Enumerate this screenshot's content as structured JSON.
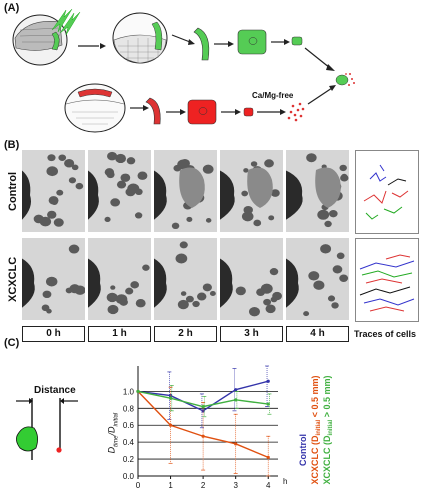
{
  "panels": {
    "a_label": "(A)",
    "b_label": "(B)",
    "c_label": "(C)"
  },
  "panel_a": {
    "treatment_label": "Ca/Mg-free"
  },
  "panel_b": {
    "row_labels": [
      "Control",
      "XCXCLC"
    ],
    "time_labels": [
      "0 h",
      "1 h",
      "2 h",
      "3 h",
      "4 h"
    ],
    "traces_label": "Traces of cells",
    "trace_colors": [
      "#d33",
      "#2a2",
      "#33c",
      "#111"
    ]
  },
  "panel_c": {
    "distance_label": "Distance",
    "x_unit": "h",
    "y_label_main": "D",
    "y_label_sub1": "time",
    "y_label_sub2": "initial",
    "y_label_sep": "/",
    "legend": {
      "control": "Control",
      "x_small": "XCXCLC (D",
      "x_small_sub": "initial",
      "x_small_tail": " < 0.5 mm)",
      "x_large": "XCXCLC (D",
      "x_large_sub": "initial",
      "x_large_tail": " > 0.5 mm)"
    },
    "colors": {
      "control": "#3333aa",
      "small": "#e05010",
      "large": "#40b040"
    }
  },
  "chart_data": {
    "type": "line",
    "x": [
      0,
      1,
      2,
      3,
      4
    ],
    "xlim": [
      0,
      4.3
    ],
    "ylim": [
      0,
      1.3
    ],
    "yticks": [
      0,
      0.2,
      0.4,
      0.6,
      0.8,
      1.0
    ],
    "xticks": [
      0,
      1,
      2,
      3,
      4
    ],
    "xlabel": "h",
    "ylabel": "D time / D initial",
    "grid": "horizontal",
    "series": [
      {
        "name": "Control",
        "color": "#3333aa",
        "values": [
          1.0,
          0.95,
          0.77,
          1.02,
          1.12
        ],
        "err": [
          0,
          0.28,
          0.2,
          0.25,
          0.3
        ]
      },
      {
        "name": "XCXCLC (D initial < 0.5 mm)",
        "color": "#e05010",
        "values": [
          1.0,
          0.6,
          0.47,
          0.38,
          0.22
        ],
        "err": [
          0,
          0.45,
          0.4,
          0.35,
          0.25
        ]
      },
      {
        "name": "XCXCLC (D initial > 0.5 mm)",
        "color": "#40b040",
        "values": [
          1.0,
          0.92,
          0.82,
          0.9,
          0.85
        ],
        "err": [
          0,
          0.15,
          0.12,
          0.1,
          0.12
        ]
      }
    ]
  }
}
